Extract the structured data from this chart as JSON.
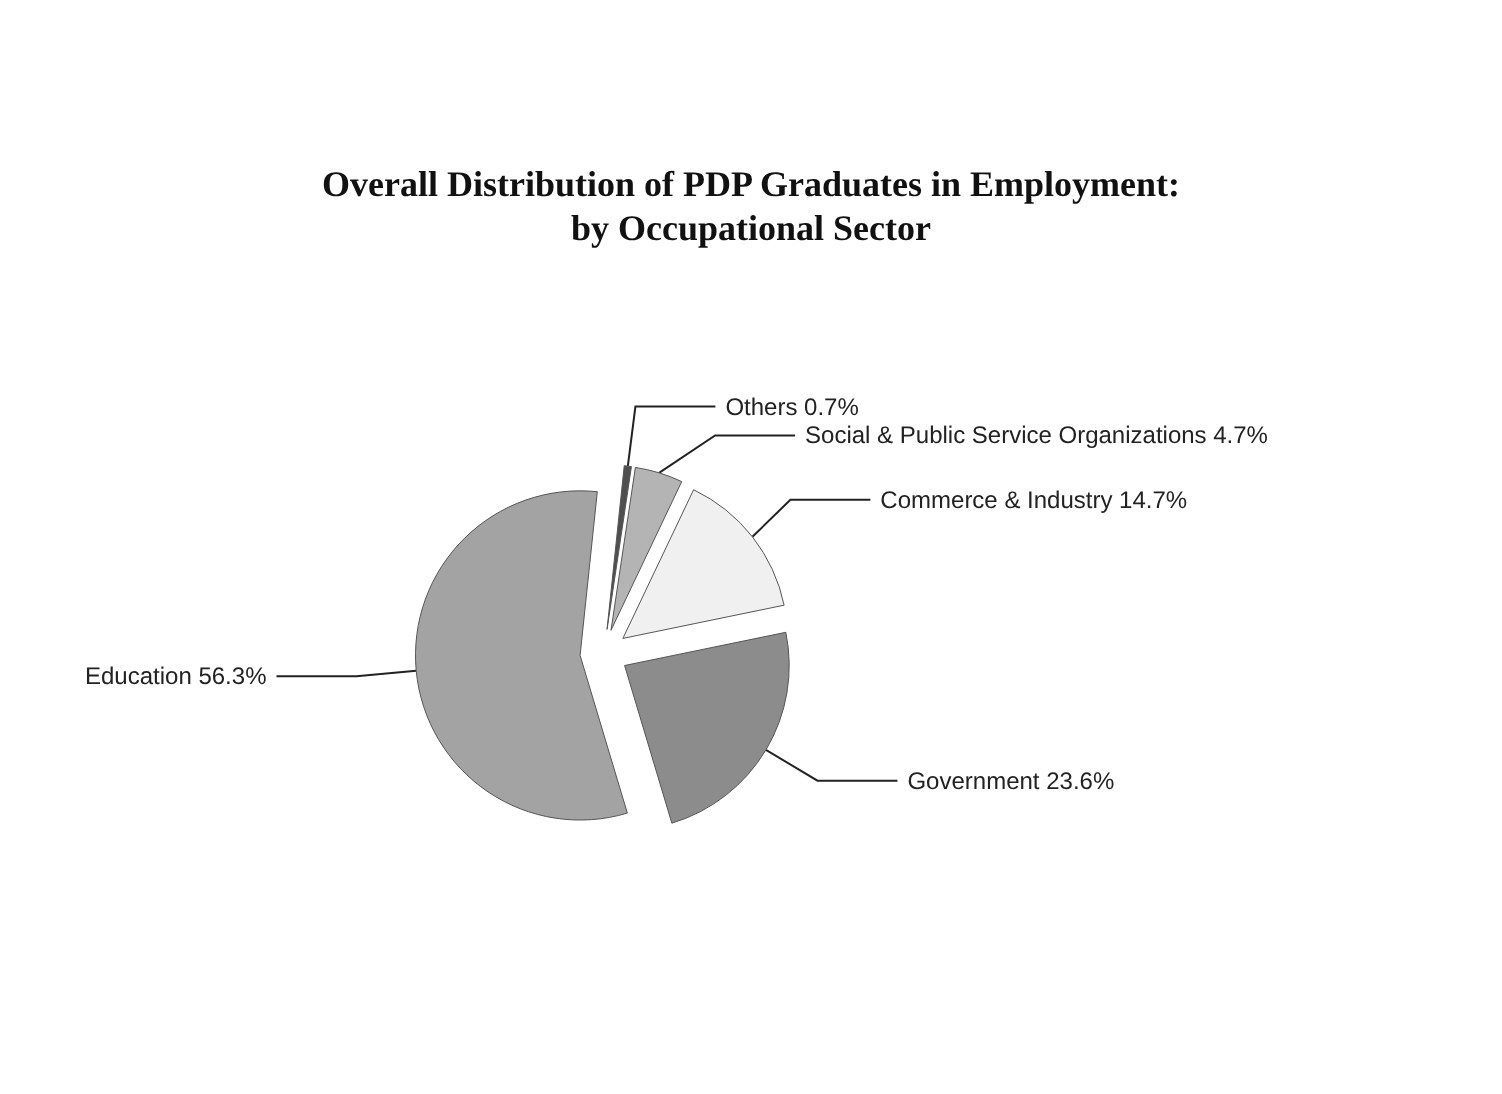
{
  "chart_data": {
    "type": "pie",
    "title": "Overall Distribution of PDP Graduates in Employment:\nby Occupational Sector",
    "categories": [
      "Others",
      "Social & Public Service Organizations",
      "Commerce & Industry",
      "Government",
      "Education"
    ],
    "values": [
      0.7,
      4.7,
      14.7,
      23.6,
      56.3
    ],
    "value_labels": [
      "0.7%",
      "4.7%",
      "14.7%",
      "23.6%",
      "56.3%"
    ],
    "colors": [
      "#4f4f4f",
      "#b4b4b4",
      "#f0f0f0",
      "#8c8c8c",
      "#a3a3a3"
    ],
    "legend": false
  }
}
